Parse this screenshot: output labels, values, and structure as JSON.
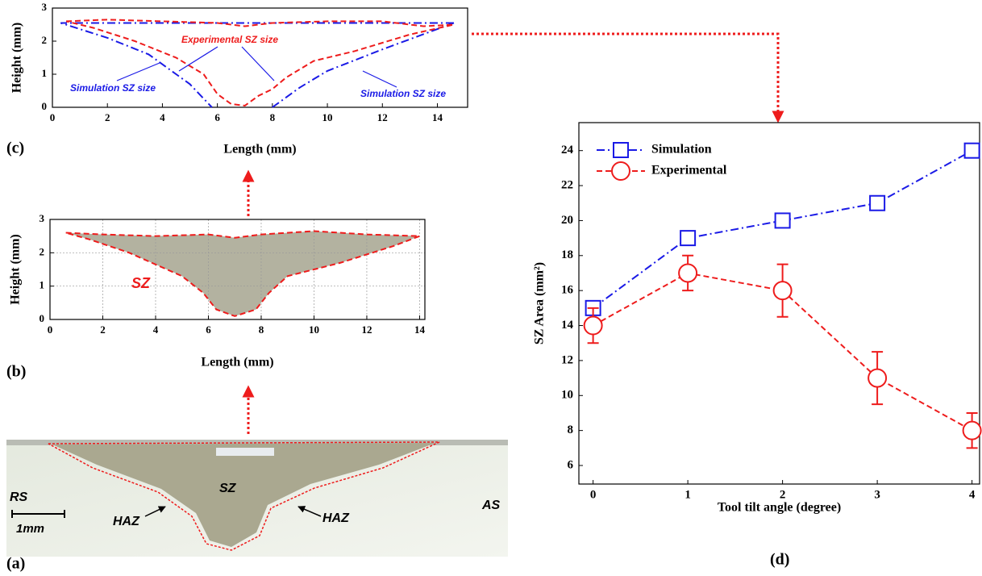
{
  "chart_data": [
    {
      "type": "line",
      "panel_label": "(c)",
      "x_label": "Length (mm)",
      "y_label": "Height (mm)",
      "xlim": [
        0,
        15.1
      ],
      "ylim": [
        0,
        3
      ],
      "xticks": [
        0,
        2,
        4,
        6,
        8,
        10,
        12,
        14
      ],
      "yticks": [
        0,
        1,
        2,
        3
      ],
      "grid": false,
      "annotations": [
        "Experimental SZ size"
      ],
      "series": [
        {
          "name": "Simulation SZ size",
          "color": "#1a1ae6",
          "line_style": "dashdot",
          "x": [
            14.6,
            10,
            6,
            2,
            0.3,
            2,
            3.5,
            5,
            5.8,
            6.5,
            8,
            9,
            10,
            12,
            14.6
          ],
          "values": [
            2.55,
            2.55,
            2.55,
            2.55,
            2.55,
            2.1,
            1.6,
            0.7,
            0,
            null,
            0,
            0.6,
            1.1,
            1.75,
            2.55
          ]
        },
        {
          "name": "Experimental SZ size",
          "color": "#ee1c1c",
          "line_style": "dash",
          "x": [
            0.5,
            2,
            4,
            6,
            7,
            8,
            10,
            12,
            13.5,
            14.6,
            13,
            11,
            9.5,
            8.5,
            8,
            7.5,
            7,
            6.5,
            6,
            5.5,
            4.5,
            3,
            1.5,
            0.5
          ],
          "values": [
            2.6,
            2.65,
            2.6,
            2.55,
            2.45,
            2.55,
            2.6,
            2.6,
            2.45,
            2.5,
            2.2,
            1.7,
            1.4,
            0.9,
            0.55,
            0.35,
            0.05,
            0.1,
            0.4,
            1.0,
            1.5,
            2.0,
            2.4,
            2.6
          ]
        }
      ]
    },
    {
      "type": "line",
      "panel_label": "(b)",
      "x_label": "Length (mm)",
      "y_label": "Height (mm)",
      "xlim": [
        0,
        14.2
      ],
      "ylim": [
        0,
        3
      ],
      "xticks": [
        0,
        2,
        4,
        6,
        8,
        10,
        12,
        14
      ],
      "yticks": [
        0,
        1,
        2,
        3
      ],
      "grid": true,
      "annotations": [
        "SZ"
      ],
      "series": [
        {
          "color": "#ee1c1c",
          "line_style": "dash",
          "fill": "#a6a48f",
          "x": [
            0.6,
            2,
            4,
            6,
            7,
            8,
            10,
            12,
            14,
            13,
            11,
            9,
            8.3,
            7.8,
            7,
            6.3,
            5.8,
            5,
            3,
            1.5,
            0.6
          ],
          "values": [
            2.6,
            2.55,
            2.5,
            2.55,
            2.45,
            2.55,
            2.65,
            2.55,
            2.5,
            2.2,
            1.7,
            1.3,
            0.8,
            0.3,
            0.1,
            0.3,
            0.8,
            1.3,
            2.0,
            2.4,
            2.6
          ]
        }
      ]
    },
    {
      "type": "line",
      "panel_label": "(d)",
      "x_label": "Tool tilt angle (degree)",
      "y_label": "SZ Area (mm²)",
      "xlim": [
        -0.15,
        4.08
      ],
      "ylim": [
        4.94,
        25.6
      ],
      "xticks": [
        0,
        1,
        2,
        3,
        4
      ],
      "yticks": [
        6,
        8,
        10,
        12,
        14,
        16,
        18,
        20,
        22,
        24
      ],
      "grid": false,
      "legend": "upper left",
      "series": [
        {
          "name": "Simulation",
          "color": "#1a1ae6",
          "line_style": "dashdot",
          "marker": "square",
          "x": [
            0,
            1,
            2,
            3,
            4
          ],
          "values": [
            15,
            19,
            20,
            21,
            24
          ]
        },
        {
          "name": "Experimental",
          "color": "#ee1c1c",
          "line_style": "dash",
          "marker": "circle",
          "x": [
            0,
            1,
            2,
            3,
            4
          ],
          "values": [
            14,
            17,
            16,
            11,
            8
          ],
          "errors": [
            1,
            1,
            1.5,
            1.5,
            1
          ]
        }
      ]
    }
  ],
  "photo": {
    "panel_label": "(a)",
    "labels": [
      "RS",
      "SZ",
      "HAZ",
      "HAZ",
      "AS",
      "1mm"
    ]
  }
}
